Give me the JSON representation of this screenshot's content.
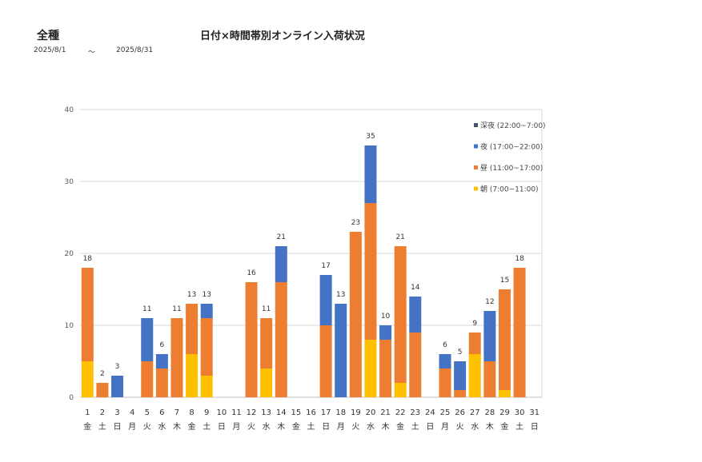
{
  "header": {
    "category": "全種",
    "title": "日付×時間帯別オンライン入荷状況",
    "date_from": "2025/8/1",
    "date_sep": "～",
    "date_to": "2025/8/31"
  },
  "colors": {
    "深夜": "#44546a",
    "夜": "#4472c4",
    "昼": "#ed7d31",
    "朝": "#ffc000"
  },
  "chart_data": {
    "type": "bar",
    "stacked": true,
    "ylim": [
      0,
      40
    ],
    "yticks": [
      0,
      10,
      20,
      30,
      40
    ],
    "grid": true,
    "legend_position": "top-right",
    "categories": [
      "1",
      "2",
      "3",
      "4",
      "5",
      "6",
      "7",
      "8",
      "9",
      "10",
      "11",
      "12",
      "13",
      "14",
      "15",
      "16",
      "17",
      "18",
      "19",
      "20",
      "21",
      "22",
      "23",
      "24",
      "25",
      "26",
      "27",
      "28",
      "29",
      "30",
      "31"
    ],
    "weekdays": [
      "金",
      "土",
      "日",
      "月",
      "火",
      "水",
      "木",
      "金",
      "土",
      "日",
      "月",
      "火",
      "水",
      "木",
      "金",
      "土",
      "日",
      "月",
      "火",
      "水",
      "木",
      "金",
      "土",
      "日",
      "月",
      "火",
      "水",
      "木",
      "金",
      "土",
      "日"
    ],
    "series": [
      {
        "name": "朝 (7:00~11:00)",
        "key": "朝",
        "values": [
          5,
          0,
          0,
          0,
          0,
          0,
          0,
          6,
          3,
          0,
          0,
          0,
          4,
          0,
          0,
          0,
          0,
          0,
          0,
          8,
          0,
          2,
          0,
          0,
          0,
          0,
          6,
          0,
          1,
          0,
          0
        ]
      },
      {
        "name": "昼 (11:00~17:00)",
        "key": "昼",
        "values": [
          13,
          2,
          0,
          0,
          5,
          4,
          11,
          7,
          8,
          0,
          0,
          16,
          7,
          16,
          0,
          0,
          10,
          0,
          23,
          19,
          8,
          19,
          9,
          0,
          4,
          1,
          3,
          5,
          14,
          18,
          0
        ]
      },
      {
        "name": "夜 (17:00~22:00)",
        "key": "夜",
        "values": [
          0,
          0,
          3,
          0,
          6,
          2,
          0,
          0,
          2,
          0,
          0,
          0,
          0,
          5,
          0,
          0,
          7,
          13,
          0,
          8,
          2,
          0,
          5,
          0,
          2,
          4,
          0,
          7,
          0,
          0,
          0
        ]
      },
      {
        "name": "深夜 (22:00~7:00)",
        "key": "深夜",
        "values": [
          0,
          0,
          0,
          0,
          0,
          0,
          0,
          0,
          0,
          0,
          0,
          0,
          0,
          0,
          0,
          0,
          0,
          0,
          0,
          0,
          0,
          0,
          0,
          0,
          0,
          0,
          0,
          0,
          0,
          0,
          0
        ]
      }
    ],
    "totals": [
      18,
      2,
      3,
      null,
      11,
      6,
      11,
      13,
      13,
      null,
      null,
      16,
      11,
      21,
      null,
      null,
      17,
      13,
      23,
      35,
      10,
      21,
      14,
      null,
      6,
      5,
      9,
      12,
      15,
      18,
      null
    ],
    "legend": [
      "深夜 (22:00~7:00)",
      "夜 (17:00~22:00)",
      "昼 (11:00~17:00)",
      "朝 (7:00~11:00)"
    ]
  }
}
